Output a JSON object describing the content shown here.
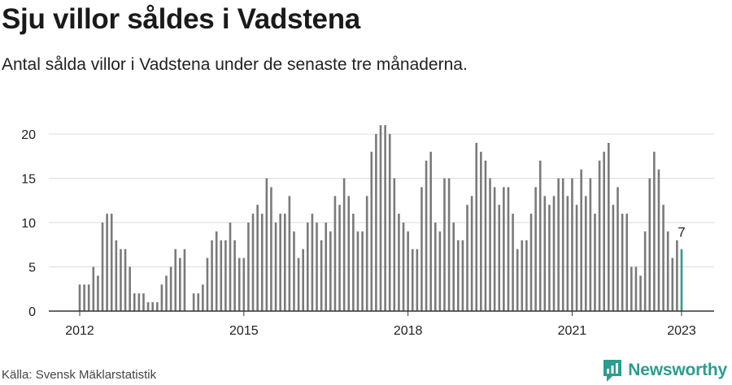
{
  "header": {
    "title": "Sju villor såldes i Vadstena",
    "subtitle": "Antal sålda villor i Vadstena under de senaste tre månaderna."
  },
  "footer": {
    "source": "Källa: Svensk Mäklarstatistik",
    "brand": "Newsworthy"
  },
  "colors": {
    "bar": "#7a7a7a",
    "highlight": "#2a9d8f",
    "grid": "#dddddd",
    "axis": "#333333"
  },
  "chart_data": {
    "type": "bar",
    "title": "",
    "xlabel": "",
    "ylabel": "",
    "ylim": [
      0,
      21
    ],
    "yticks": [
      0,
      5,
      10,
      15,
      20
    ],
    "grid": true,
    "xticks": [
      {
        "label": "2012",
        "month": "2012-01"
      },
      {
        "label": "2015",
        "month": "2015-01"
      },
      {
        "label": "2018",
        "month": "2018-01"
      },
      {
        "label": "2021",
        "month": "2021-01"
      },
      {
        "label": "2023",
        "month": "2023-01"
      }
    ],
    "start_month": "2012-01",
    "end_month": "2023-01",
    "annotation": {
      "label": "7",
      "month": "2023-01"
    },
    "values": [
      3,
      3,
      3,
      5,
      4,
      10,
      11,
      11,
      8,
      7,
      7,
      5,
      2,
      2,
      2,
      1,
      1,
      1,
      3,
      4,
      5,
      7,
      6,
      7,
      null,
      2,
      2,
      3,
      6,
      8,
      9,
      8,
      8,
      10,
      8,
      6,
      6,
      10,
      11,
      12,
      11,
      15,
      14,
      10,
      11,
      11,
      13,
      9,
      6,
      7,
      10,
      11,
      10,
      8,
      10,
      9,
      13,
      12,
      15,
      13,
      11,
      9,
      9,
      13,
      18,
      20,
      21,
      21,
      20,
      15,
      11,
      10,
      9,
      7,
      7,
      14,
      17,
      18,
      10,
      9,
      15,
      15,
      10,
      8,
      8,
      12,
      13,
      19,
      18,
      17,
      15,
      14,
      12,
      14,
      14,
      11,
      7,
      8,
      8,
      11,
      14,
      17,
      13,
      12,
      13,
      15,
      15,
      13,
      15,
      12,
      16,
      13,
      15,
      11,
      17,
      18,
      19,
      12,
      14,
      11,
      11,
      5,
      5,
      4,
      9,
      15,
      18,
      16,
      12,
      9,
      6,
      8,
      7
    ]
  }
}
